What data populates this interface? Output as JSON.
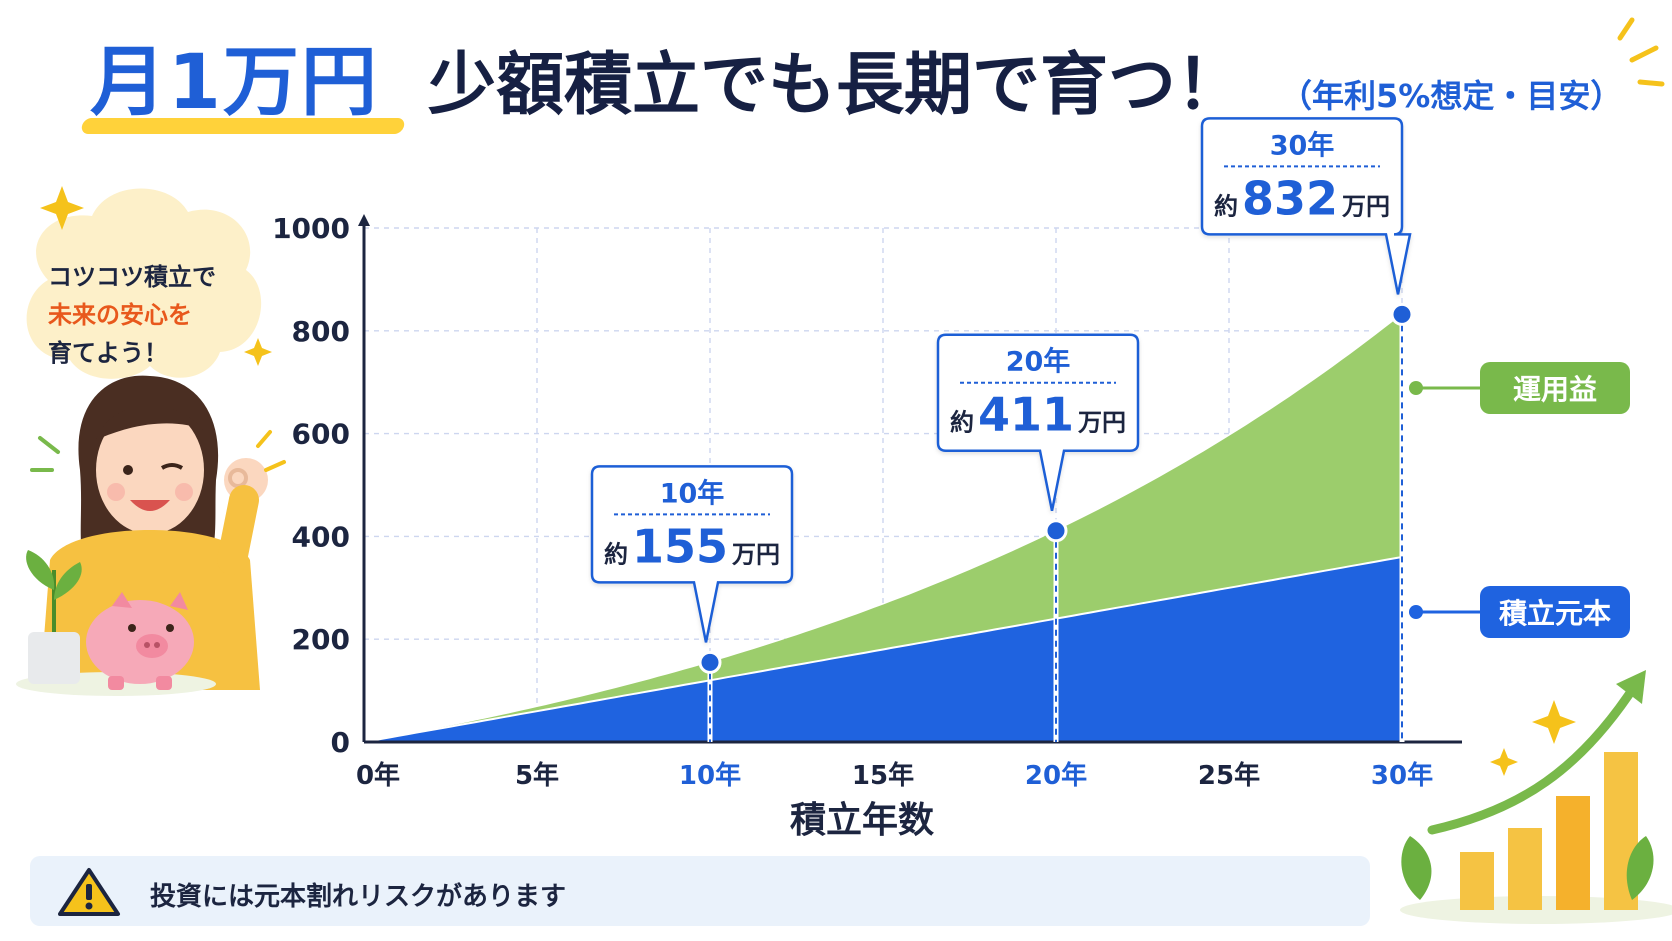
{
  "title": {
    "highlight": "月1万円",
    "main": "少額積立でも長期で育つ！",
    "sub": "（年利5%想定・目安）"
  },
  "speech": {
    "line1": "コツコツ積立で",
    "line2": "未来の安心を",
    "line3": "育てよう！"
  },
  "warning": {
    "text": "投資には元本割れリスクがあります"
  },
  "colors": {
    "principal": "#1f63e0",
    "gain": "#9ccd6c",
    "accent_blue": "#1f5fd6",
    "legend_gain": "#79b94b",
    "axis": "#1c2540"
  },
  "icons": [
    "warning-triangle-icon",
    "sparkle-icon",
    "piggy-bank-icon",
    "plant-icon",
    "growth-arrow-icon"
  ],
  "chart_data": {
    "type": "area",
    "xlabel": "積立年数",
    "ylabel": "",
    "x_ticks": [
      {
        "value": 0,
        "label": "0年",
        "highlight": false
      },
      {
        "value": 5,
        "label": "5年",
        "highlight": false
      },
      {
        "value": 10,
        "label": "10年",
        "highlight": true
      },
      {
        "value": 15,
        "label": "15年",
        "highlight": false
      },
      {
        "value": 20,
        "label": "20年",
        "highlight": true
      },
      {
        "value": 25,
        "label": "25年",
        "highlight": false
      },
      {
        "value": 30,
        "label": "30年",
        "highlight": true
      }
    ],
    "y_ticks": [
      0,
      200,
      400,
      600,
      800,
      1000
    ],
    "xlim": [
      0,
      30
    ],
    "ylim": [
      0,
      1000
    ],
    "grid": true,
    "annual_rate": 0.05,
    "monthly_contribution": 1,
    "series": [
      {
        "name": "積立元本",
        "key": "principal"
      },
      {
        "name": "運用益",
        "key": "gain"
      }
    ],
    "milestones": [
      {
        "year": 10,
        "label": "10年",
        "prefix": "約",
        "amount": "155",
        "unit": "万円",
        "value": 155
      },
      {
        "year": 20,
        "label": "20年",
        "prefix": "約",
        "amount": "411",
        "unit": "万円",
        "value": 411
      },
      {
        "year": 30,
        "label": "30年",
        "prefix": "約",
        "amount": "832",
        "unit": "万円",
        "value": 832
      }
    ]
  }
}
